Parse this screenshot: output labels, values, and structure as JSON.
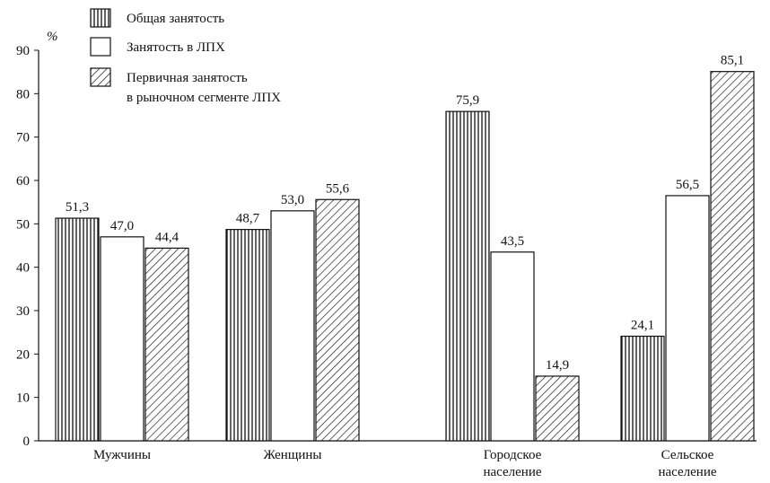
{
  "chart_data": {
    "type": "bar",
    "unit_label": "%",
    "ylim": [
      0,
      90
    ],
    "yticks": [
      0,
      10,
      20,
      30,
      40,
      50,
      60,
      70,
      80,
      90
    ],
    "categories": [
      [
        "Мужчины"
      ],
      [
        "Женщины"
      ],
      [
        "Городское",
        "население"
      ],
      [
        "Сельское",
        "население"
      ]
    ],
    "series": [
      {
        "name": "Общая занятость",
        "pattern": "vertical",
        "values": [
          51.3,
          48.7,
          75.9,
          24.1
        ],
        "labels": [
          "51,3",
          "48,7",
          "75,9",
          "24,1"
        ]
      },
      {
        "name": "Занятость в ЛПХ",
        "pattern": "none",
        "values": [
          47.0,
          53.0,
          43.5,
          56.5
        ],
        "labels": [
          "47,0",
          "53,0",
          "43,5",
          "56,5"
        ]
      },
      {
        "name": [
          "Первичная занятость",
          "в рыночном сегменте ЛПХ"
        ],
        "pattern": "diagonal",
        "values": [
          44.4,
          55.6,
          14.9,
          85.1
        ],
        "labels": [
          "44,4",
          "55,6",
          "14,9",
          "85,1"
        ]
      }
    ],
    "legend_position": "top-left",
    "grid": false
  }
}
